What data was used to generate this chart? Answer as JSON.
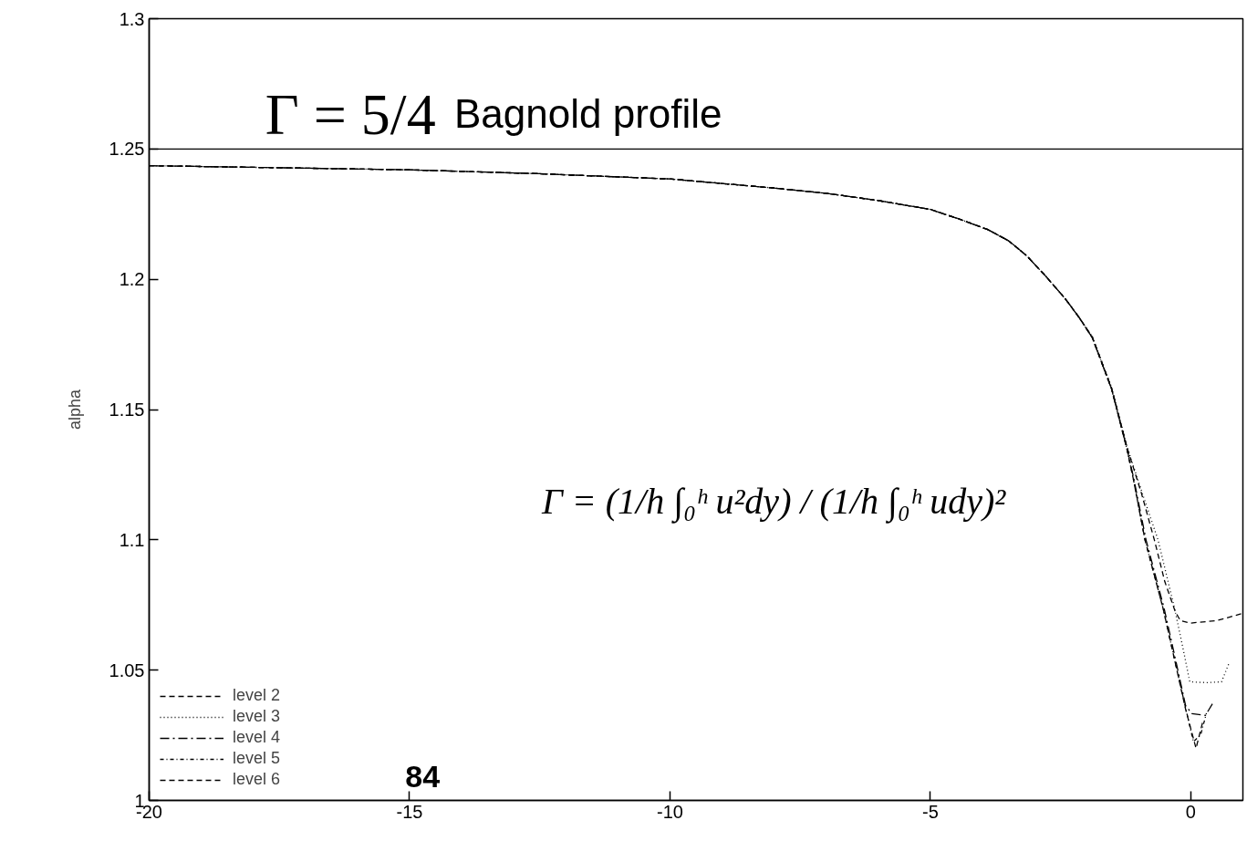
{
  "chart_data": {
    "type": "line",
    "ylabel": "alpha",
    "xlim": [
      -20,
      1
    ],
    "ylim": [
      1,
      1.3
    ],
    "xticks": [
      -20,
      -15,
      -10,
      -5,
      0
    ],
    "yticks": [
      1,
      1.05,
      1.1,
      1.15,
      1.2,
      1.25,
      1.3
    ],
    "grid": false,
    "legend": "bottom left",
    "marker": "none",
    "series": [
      {
        "name": "level 2",
        "color": "#000000",
        "line_style": "dashed",
        "x": [
          -20,
          -17.5,
          -15,
          -12.5,
          -10,
          -8,
          -7,
          -6,
          -5,
          -4.5,
          -3.9,
          -3.5,
          -3.15,
          -2.8,
          -2.41,
          -2.15,
          -1.89,
          -1.52,
          -1.22,
          -0.95,
          -0.7,
          -0.5,
          -0.3,
          -0.2,
          0,
          0.12,
          0.5,
          1
        ],
        "values": [
          1.2436,
          1.2428,
          1.242,
          1.2405,
          1.2385,
          1.235,
          1.233,
          1.2302,
          1.2268,
          1.2235,
          1.2191,
          1.2148,
          1.209,
          1.2015,
          1.1925,
          1.1855,
          1.1778,
          1.1582,
          1.1352,
          1.118,
          1.1,
          1.084,
          1.0725,
          1.069,
          1.068,
          1.0683,
          1.069,
          1.0718
        ]
      },
      {
        "name": "level 3",
        "color": "#000000",
        "line_style": "dotted",
        "x": [
          -20,
          -17.5,
          -15,
          -12.5,
          -10,
          -8,
          -7,
          -6,
          -5,
          -4.5,
          -3.9,
          -3.5,
          -3.15,
          -2.8,
          -2.41,
          -2.15,
          -1.89,
          -1.52,
          -1.22,
          -0.95,
          -0.63,
          -0.31,
          -0.14,
          -0.02,
          0.3,
          0.59,
          0.73
        ],
        "values": [
          1.2436,
          1.2428,
          1.242,
          1.2405,
          1.2385,
          1.235,
          1.233,
          1.2302,
          1.2268,
          1.2235,
          1.2191,
          1.2148,
          1.209,
          1.2015,
          1.1925,
          1.1855,
          1.178,
          1.1585,
          1.1355,
          1.119,
          1.1,
          1.0735,
          1.0574,
          1.0455,
          1.0452,
          1.0455,
          1.0525
        ]
      },
      {
        "name": "level 4",
        "color": "#000000",
        "line_style": "dashdot",
        "x": [
          -20,
          -17.5,
          -15,
          -12.5,
          -10,
          -8,
          -7,
          -6,
          -5,
          -4.5,
          -3.9,
          -3.5,
          -3.15,
          -2.8,
          -2.41,
          -2.15,
          -1.89,
          -1.52,
          -1.22,
          -1.1,
          -0.86,
          -0.51,
          -0.33,
          -0.1,
          0.02,
          0.28,
          0.45
        ],
        "values": [
          1.2436,
          1.2428,
          1.242,
          1.2405,
          1.2385,
          1.235,
          1.233,
          1.2302,
          1.2268,
          1.2235,
          1.2191,
          1.2148,
          1.209,
          1.2015,
          1.1925,
          1.1855,
          1.1775,
          1.1578,
          1.1345,
          1.124,
          1.1,
          1.0735,
          1.0574,
          1.0364,
          1.0333,
          1.0326,
          1.0382
        ]
      },
      {
        "name": "level 5",
        "color": "#000000",
        "line_style": "dotdash",
        "x": [
          -20,
          -17.5,
          -15,
          -12.5,
          -10,
          -8,
          -7,
          -6,
          -5,
          -4.5,
          -3.9,
          -3.5,
          -3.15,
          -2.8,
          -2.41,
          -2.15,
          -1.89,
          -1.52,
          -1.22,
          -1.1,
          -0.88,
          -0.53,
          -0.35,
          -0.1,
          0.05,
          0.19,
          0.3
        ],
        "values": [
          1.2436,
          1.2428,
          1.242,
          1.2405,
          1.2385,
          1.235,
          1.233,
          1.2302,
          1.2268,
          1.2235,
          1.2191,
          1.2148,
          1.209,
          1.2015,
          1.1925,
          1.1855,
          1.1775,
          1.1578,
          1.1343,
          1.123,
          1.1,
          1.0735,
          1.0574,
          1.0355,
          1.0225,
          1.0252,
          1.0335
        ]
      },
      {
        "name": "level 6",
        "color": "#000000",
        "line_style": "dashed",
        "x": [
          -20,
          -17.5,
          -15,
          -12.5,
          -10,
          -8,
          -7,
          -6,
          -5,
          -4.5,
          -3.9,
          -3.5,
          -3.15,
          -2.8,
          -2.41,
          -2.15,
          -1.89,
          -1.52,
          -1.22,
          -1.1,
          -0.88,
          -0.53,
          -0.35,
          -0.1,
          0.1,
          0.24
        ],
        "values": [
          1.2436,
          1.2428,
          1.242,
          1.2405,
          1.2385,
          1.235,
          1.233,
          1.2302,
          1.2268,
          1.2235,
          1.2191,
          1.2148,
          1.209,
          1.2015,
          1.1925,
          1.1855,
          1.1775,
          1.1578,
          1.1343,
          1.123,
          1.1,
          1.0735,
          1.0574,
          1.035,
          1.02,
          1.031
        ]
      }
    ],
    "ref_lines": [
      {
        "axis": "y",
        "value": 1.25,
        "label": "Bagnold profile",
        "color": "#000000",
        "line_style": "solid"
      }
    ],
    "annotations": [
      "Γ = 5/4",
      "Γ = (1/h ∫₀ʰ u²dy) / (1/h ∫₀ʰ udy)²",
      "84"
    ]
  }
}
